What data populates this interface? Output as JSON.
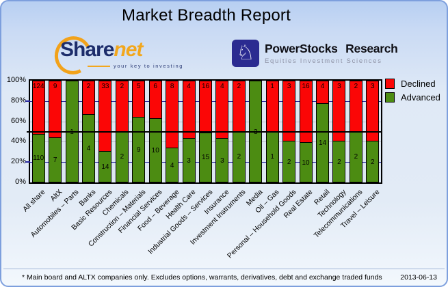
{
  "title": "Market Breadth Report",
  "logos": {
    "sharenet": {
      "part1": "Share",
      "part2": "net",
      "tagline": "your key to investing",
      "brand_navy": "#1d2d6b",
      "brand_orange": "#f2a71d"
    },
    "powerstocks": {
      "line1": "PowerStocks Research",
      "line2": "Equities Investment Sciences",
      "knight_glyph": "♘",
      "badge_color": "#2b2b91"
    }
  },
  "chart_data": {
    "type": "bar",
    "stacked": true,
    "normalized": "percent",
    "categories": [
      "All share",
      "AltX",
      "Automobiles – Parts",
      "Banks",
      "Basic Resources",
      "Chemicals",
      "Construction – Materials",
      "Financial Services",
      "Food – Beverage",
      "Health Care",
      "Industrial Goods – Services",
      "Insurance",
      "Investment Instruments",
      "Media",
      "Oil – Gas",
      "Personal – Household Goods",
      "Real Estate",
      "Retail",
      "Technology",
      "Telecommunications",
      "Travel – Leisure"
    ],
    "series": [
      {
        "name": "Declined",
        "color": "#fb0606",
        "values": [
          124,
          9,
          0,
          2,
          33,
          2,
          5,
          6,
          8,
          4,
          16,
          4,
          2,
          0,
          1,
          3,
          16,
          4,
          3,
          2,
          3
        ]
      },
      {
        "name": "Advanced",
        "color": "#4c8c12",
        "values": [
          110,
          7,
          1,
          4,
          14,
          2,
          9,
          10,
          4,
          3,
          15,
          3,
          2,
          3,
          1,
          2,
          10,
          14,
          2,
          2,
          2
        ]
      }
    ],
    "y_ticks": [
      "0%",
      "20%",
      "40%",
      "60%",
      "80%",
      "100%"
    ],
    "ylim": [
      0,
      100
    ],
    "legend_position": "top-right",
    "gridlines": [
      {
        "pct": 20,
        "color": "#2626a0"
      },
      {
        "pct": 40,
        "color": "#babdc6"
      },
      {
        "pct": 60,
        "color": "#babdc6"
      },
      {
        "pct": 80,
        "color": "#2626a0"
      }
    ],
    "midline": {
      "pct": 50,
      "color": "#000000"
    }
  },
  "footer": {
    "note": "* Main board and ALTX companies only. Excludes options, warrants, derivatives, debt and exchange traded funds",
    "date": "2013-06-13"
  }
}
